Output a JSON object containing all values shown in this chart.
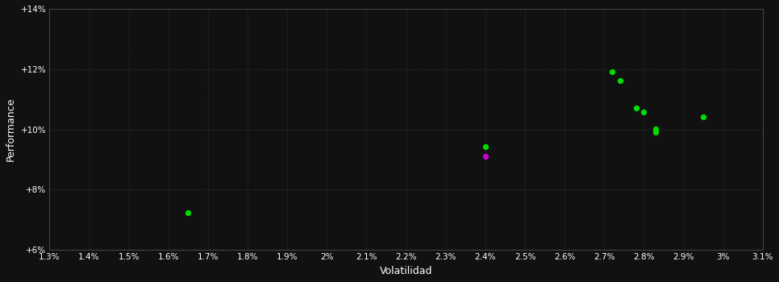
{
  "xlabel": "Volatilidad",
  "ylabel": "Performance",
  "background_color": "#111111",
  "grid_color": "#2a2a2a",
  "text_color": "#ffffff",
  "xlim": [
    0.013,
    0.031
  ],
  "ylim": [
    0.06,
    0.14
  ],
  "xticks": [
    0.013,
    0.014,
    0.015,
    0.016,
    0.017,
    0.018,
    0.019,
    0.02,
    0.021,
    0.022,
    0.023,
    0.024,
    0.025,
    0.026,
    0.027,
    0.028,
    0.029,
    0.03,
    0.031
  ],
  "yticks": [
    0.06,
    0.08,
    0.1,
    0.12,
    0.14
  ],
  "green_points": [
    [
      0.0165,
      0.0725
    ],
    [
      0.024,
      0.0942
    ],
    [
      0.0272,
      0.1192
    ],
    [
      0.0274,
      0.1162
    ],
    [
      0.0278,
      0.1072
    ],
    [
      0.028,
      0.1058
    ],
    [
      0.0283,
      0.1002
    ],
    [
      0.0283,
      0.099
    ],
    [
      0.0295,
      0.1042
    ]
  ],
  "magenta_points": [
    [
      0.024,
      0.0912
    ]
  ],
  "green_color": "#00dd00",
  "magenta_color": "#cc00cc",
  "point_size": 28
}
